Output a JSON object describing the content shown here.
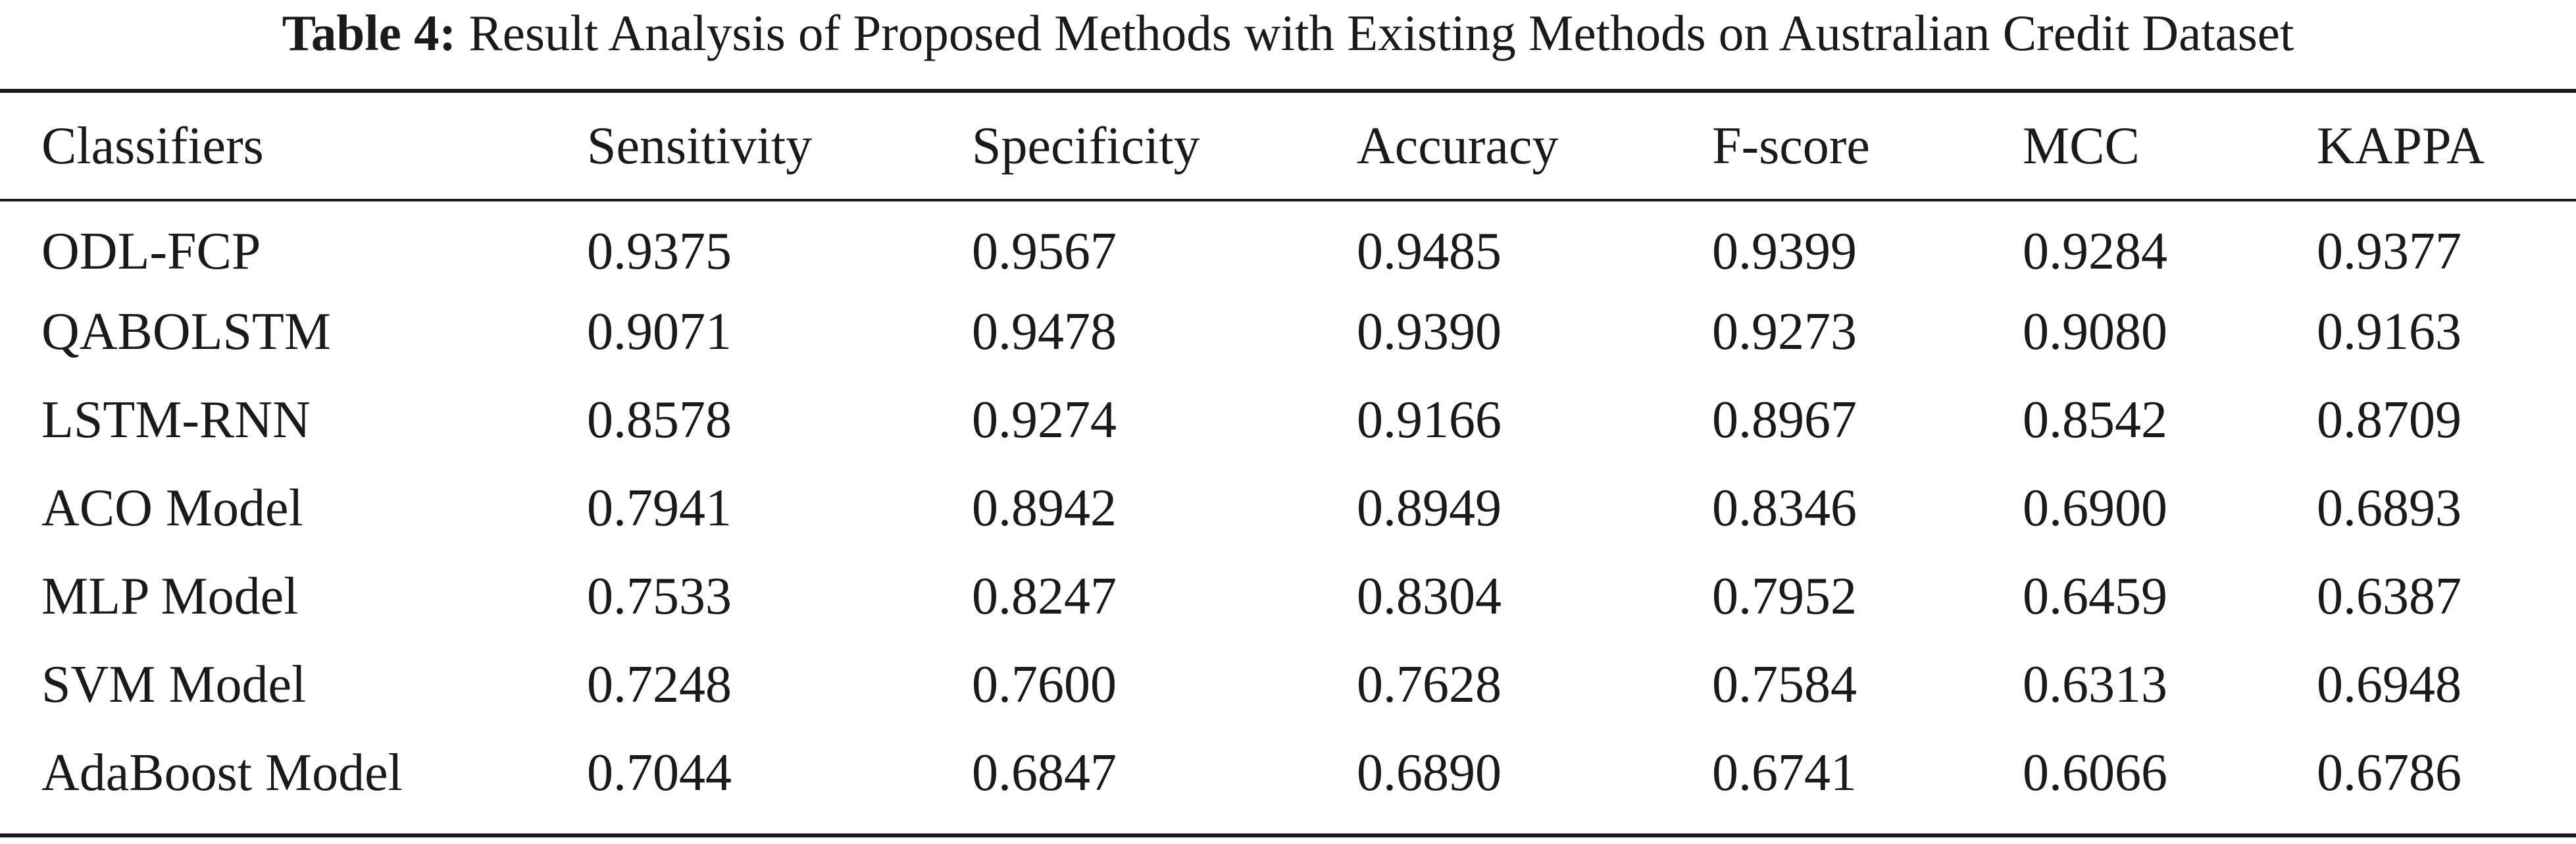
{
  "caption": {
    "label": "Table 4:",
    "text": "Result Analysis of Proposed Methods with Existing Methods on Australian Credit Dataset"
  },
  "table": {
    "headers": [
      "Classifiers",
      "Sensitivity",
      "Specificity",
      "Accuracy",
      "F-score",
      "MCC",
      "KAPPA"
    ],
    "rows": [
      [
        "ODL-FCP",
        "0.9375",
        "0.9567",
        "0.9485",
        "0.9399",
        "0.9284",
        "0.9377"
      ],
      [
        "QABOLSTM",
        "0.9071",
        "0.9478",
        "0.9390",
        "0.9273",
        "0.9080",
        "0.9163"
      ],
      [
        "LSTM-RNN",
        "0.8578",
        "0.9274",
        "0.9166",
        "0.8967",
        "0.8542",
        "0.8709"
      ],
      [
        "ACO Model",
        "0.7941",
        "0.8942",
        "0.8949",
        "0.8346",
        "0.6900",
        "0.6893"
      ],
      [
        "MLP Model",
        "0.7533",
        "0.8247",
        "0.8304",
        "0.7952",
        "0.6459",
        "0.6387"
      ],
      [
        "SVM Model",
        "0.7248",
        "0.7600",
        "0.7628",
        "0.7584",
        "0.6313",
        "0.6948"
      ],
      [
        "AdaBoost Model",
        "0.7044",
        "0.6847",
        "0.6890",
        "0.6741",
        "0.6066",
        "0.6786"
      ]
    ]
  }
}
